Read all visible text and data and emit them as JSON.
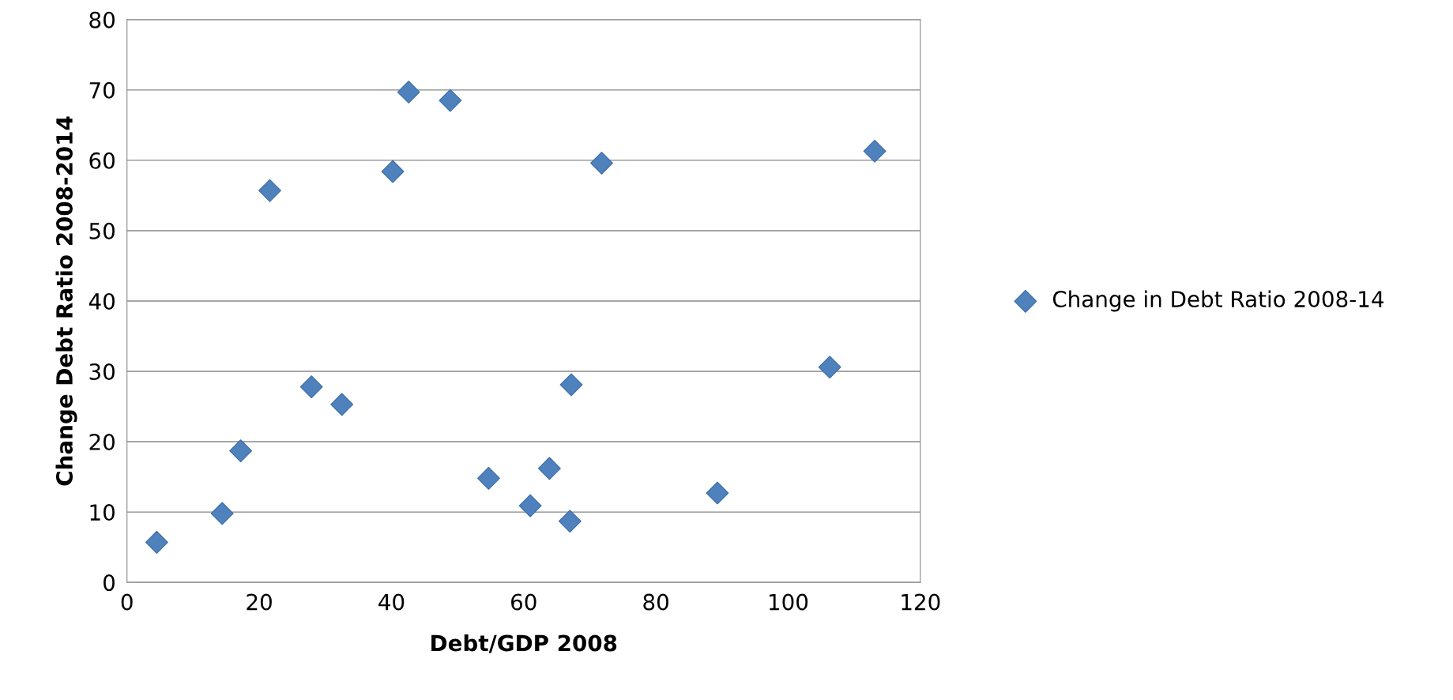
{
  "chart_data": {
    "type": "scatter",
    "xlabel": "Debt/GDP 2008",
    "ylabel": "Change Debt Ratio 2008-2014",
    "x": [
      4.5,
      14.4,
      17.2,
      21.6,
      27.9,
      32.5,
      40.2,
      42.6,
      48.9,
      54.7,
      61.0,
      63.9,
      67.0,
      67.2,
      71.8,
      89.3,
      106.3,
      113.1
    ],
    "series": [
      {
        "name": "Change in Debt Ratio 2008-14",
        "color": "#4f81bd",
        "values": [
          5.7,
          9.8,
          18.7,
          55.7,
          27.8,
          25.3,
          58.4,
          69.7,
          68.5,
          14.8,
          10.9,
          16.2,
          8.7,
          28.1,
          59.6,
          12.7,
          30.6,
          61.3
        ]
      }
    ],
    "xlim": [
      0,
      120
    ],
    "xticks": [
      0,
      20,
      40,
      60,
      80,
      100,
      120
    ],
    "ylim": [
      0,
      80
    ],
    "yticks": [
      0,
      10,
      20,
      30,
      40,
      50,
      60,
      70,
      80
    ],
    "grid": "y",
    "legend": "right",
    "marker": "diamond"
  }
}
